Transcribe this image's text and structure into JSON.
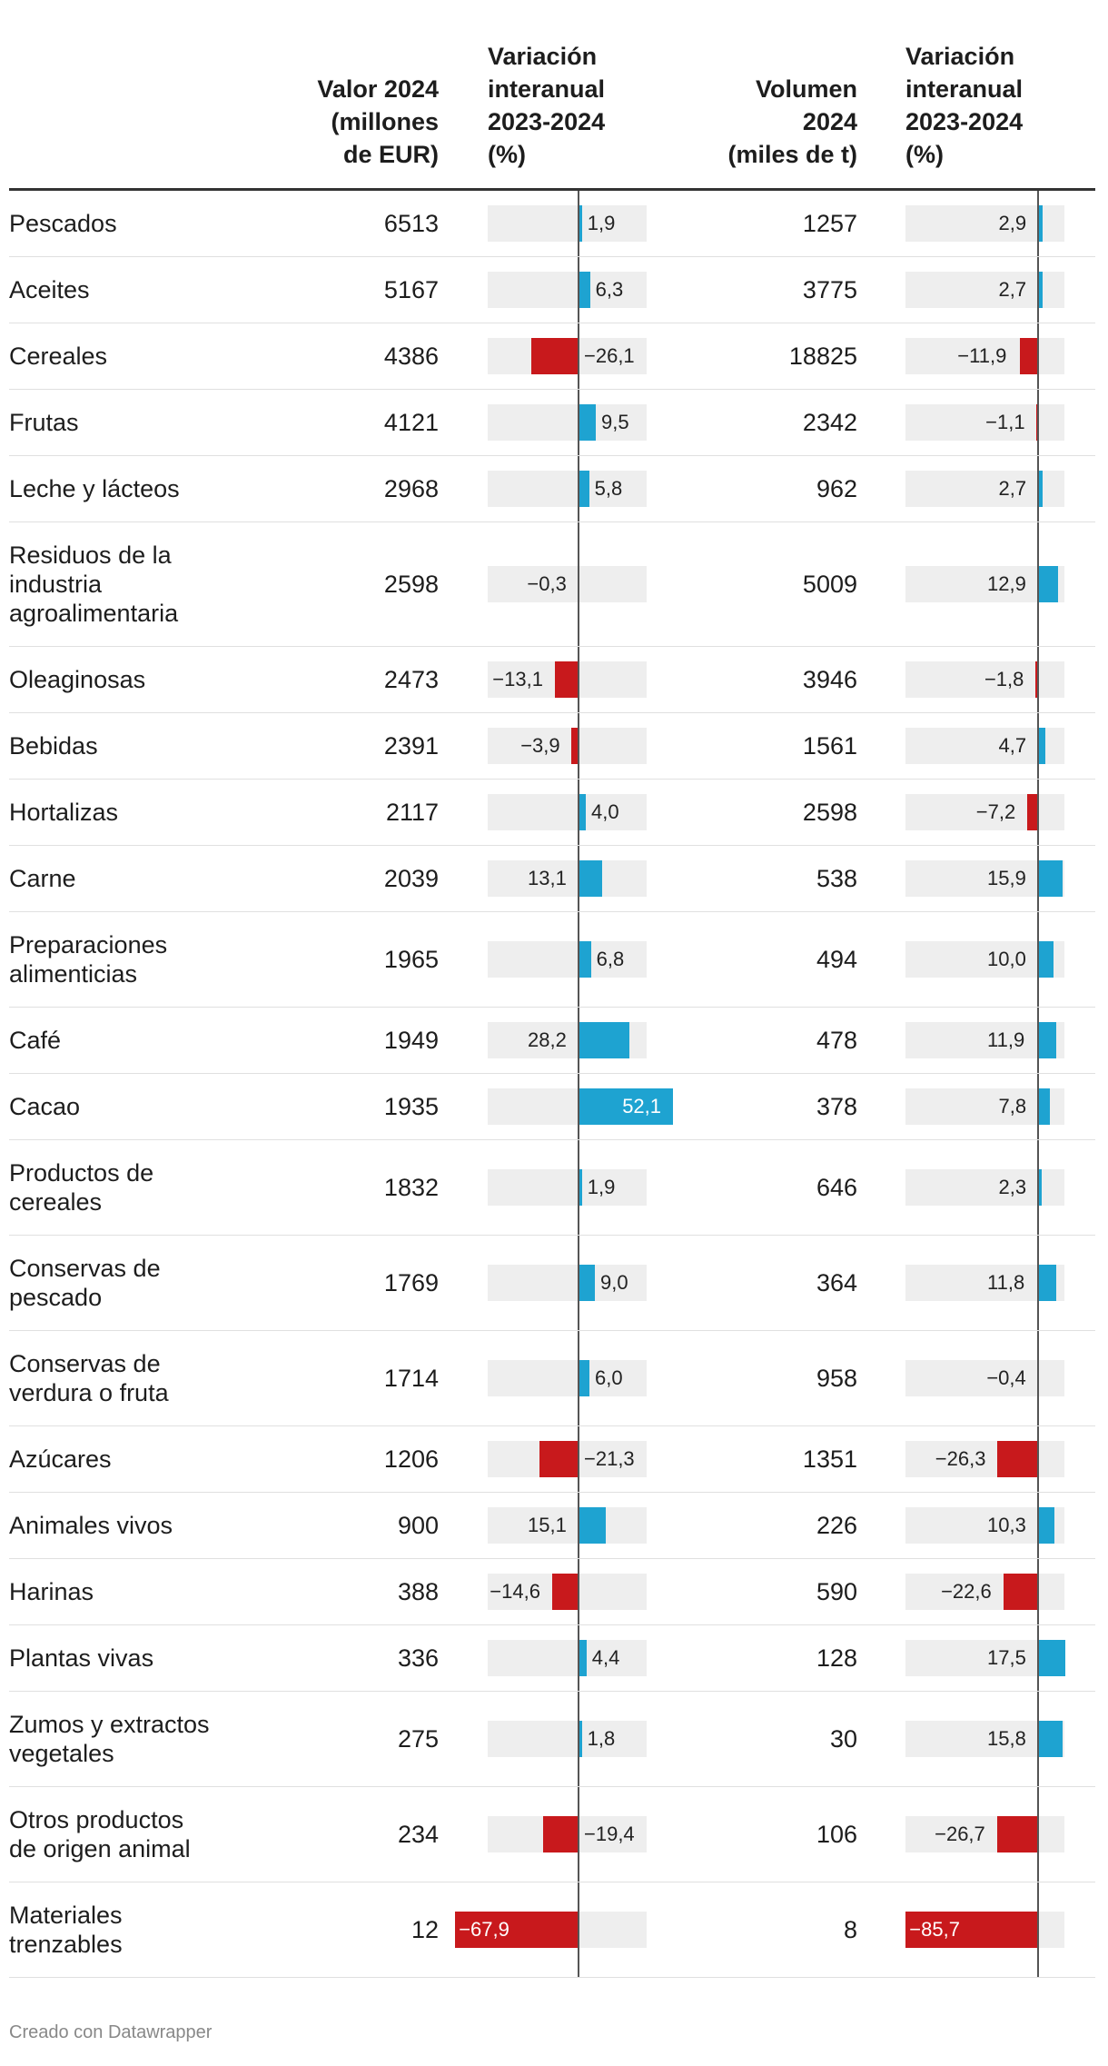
{
  "colors": {
    "positive": "#1ea3d1",
    "negative": "#c8191c",
    "track": "#eeeeee",
    "zero_line": "#555555"
  },
  "header": {
    "valor": "Valor 2024\n(millones\nde EUR)",
    "var_valor": "Variación\ninteranual\n2023-2024\n(%)",
    "volumen": "Volumen\n2024\n(miles de t)",
    "var_volumen": "Variación\ninteranual\n2023-2024\n(%)"
  },
  "chart_data": {
    "type": "table",
    "columns": [
      "",
      "Valor 2024 (millones de EUR)",
      "Variación interanual 2023-2024 (%)",
      "Volumen 2024 (miles de t)",
      "Variación interanual 2023-2024 (%)"
    ],
    "bar_domain": [
      -85.7,
      52.1
    ],
    "rows": [
      {
        "name": "Pescados",
        "valor": "6513",
        "var_valor": 1.9,
        "volumen": "1257",
        "var_volumen": 2.9
      },
      {
        "name": "Aceites",
        "valor": "5167",
        "var_valor": 6.3,
        "volumen": "3775",
        "var_volumen": 2.7
      },
      {
        "name": "Cereales",
        "valor": "4386",
        "var_valor": -26.1,
        "volumen": "18825",
        "var_volumen": -11.9
      },
      {
        "name": "Frutas",
        "valor": "4121",
        "var_valor": 9.5,
        "volumen": "2342",
        "var_volumen": -1.1
      },
      {
        "name": "Leche y lácteos",
        "valor": "2968",
        "var_valor": 5.8,
        "volumen": "962",
        "var_volumen": 2.7
      },
      {
        "name": "Residuos de la\nindustria\nagroalimentaria",
        "valor": "2598",
        "var_valor": -0.3,
        "volumen": "5009",
        "var_volumen": 12.9
      },
      {
        "name": "Oleaginosas",
        "valor": "2473",
        "var_valor": -13.1,
        "volumen": "3946",
        "var_volumen": -1.8
      },
      {
        "name": "Bebidas",
        "valor": "2391",
        "var_valor": -3.9,
        "volumen": "1561",
        "var_volumen": 4.7
      },
      {
        "name": "Hortalizas",
        "valor": "2117",
        "var_valor": 4.0,
        "volumen": "2598",
        "var_volumen": -7.2
      },
      {
        "name": "Carne",
        "valor": "2039",
        "var_valor": 13.1,
        "volumen": "538",
        "var_volumen": 15.9
      },
      {
        "name": "Preparaciones\nalimenticias",
        "valor": "1965",
        "var_valor": 6.8,
        "volumen": "494",
        "var_volumen": 10.0
      },
      {
        "name": "Café",
        "valor": "1949",
        "var_valor": 28.2,
        "volumen": "478",
        "var_volumen": 11.9
      },
      {
        "name": "Cacao",
        "valor": "1935",
        "var_valor": 52.1,
        "volumen": "378",
        "var_volumen": 7.8
      },
      {
        "name": "Productos de\ncereales",
        "valor": "1832",
        "var_valor": 1.9,
        "volumen": "646",
        "var_volumen": 2.3
      },
      {
        "name": "Conservas de\npescado",
        "valor": "1769",
        "var_valor": 9.0,
        "volumen": "364",
        "var_volumen": 11.8
      },
      {
        "name": "Conservas de\nverdura o fruta",
        "valor": "1714",
        "var_valor": 6.0,
        "volumen": "958",
        "var_volumen": -0.4
      },
      {
        "name": "Azúcares",
        "valor": "1206",
        "var_valor": -21.3,
        "volumen": "1351",
        "var_volumen": -26.3
      },
      {
        "name": "Animales vivos",
        "valor": "900",
        "var_valor": 15.1,
        "volumen": "226",
        "var_volumen": 10.3
      },
      {
        "name": "Harinas",
        "valor": "388",
        "var_valor": -14.6,
        "volumen": "590",
        "var_volumen": -22.6
      },
      {
        "name": "Plantas vivas",
        "valor": "336",
        "var_valor": 4.4,
        "volumen": "128",
        "var_volumen": 17.5
      },
      {
        "name": "Zumos y extractos\nvegetales",
        "valor": "275",
        "var_valor": 1.8,
        "volumen": "30",
        "var_volumen": 15.8
      },
      {
        "name": "Otros productos\nde origen animal",
        "valor": "234",
        "var_valor": -19.4,
        "volumen": "106",
        "var_volumen": -26.7
      },
      {
        "name": "Materiales\ntrenzables",
        "valor": "12",
        "var_valor": -67.9,
        "volumen": "8",
        "var_volumen": -85.7
      }
    ]
  },
  "footer": "Creado con Datawrapper"
}
